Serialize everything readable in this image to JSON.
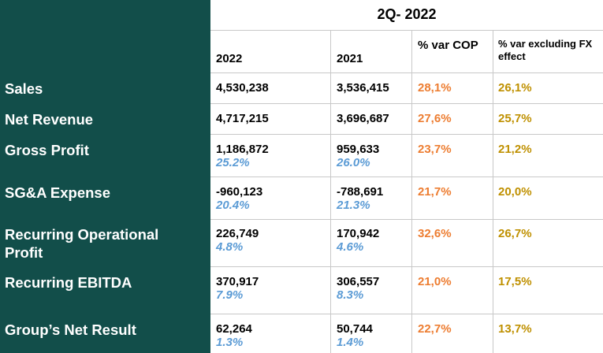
{
  "period_title": "2Q- 2022",
  "headers": {
    "y2022": "2022",
    "y2021": "2021",
    "var_cop": "% var COP",
    "var_fx": "% var excluding FX effect"
  },
  "colors": {
    "sidebar_bg": "#124e4a",
    "margin_pct": "#5b9bd5",
    "var_cop": "#ed7d31",
    "var_fx": "#bf9000"
  },
  "rows": [
    {
      "label": "Sales",
      "v2022": "4,530,238",
      "v2021": "3,536,415",
      "var_cop": "28,1%",
      "var_fx": "26,1%"
    },
    {
      "label": "Net Revenue",
      "v2022": "4,717,215",
      "v2021": "3,696,687",
      "var_cop": "27,6%",
      "var_fx": "25,7%"
    },
    {
      "label": "Gross Profit",
      "v2022": "1,186,872",
      "m2022": "25.2%",
      "v2021": "959,633",
      "m2021": "26.0%",
      "var_cop": "23,7%",
      "var_fx": "21,2%"
    },
    {
      "label": "SG&A Expense",
      "v2022": "-960,123",
      "m2022": "20.4%",
      "v2021": "-788,691",
      "m2021": "21.3%",
      "var_cop": "21,7%",
      "var_fx": "20,0%"
    },
    {
      "label": "Recurring Operational Profit",
      "v2022": "226,749",
      "m2022": "4.8%",
      "v2021": "170,942",
      "m2021": "4.6%",
      "var_cop": "32,6%",
      "var_fx": "26,7%"
    },
    {
      "label": "Recurring EBITDA",
      "v2022": "370,917",
      "m2022": "7.9%",
      "v2021": "306,557",
      "m2021": "8.3%",
      "var_cop": "21,0%",
      "var_fx": "17,5%"
    },
    {
      "label": "Group’s Net Result",
      "v2022": "62,264",
      "m2022": "1.3%",
      "v2021": "50,744",
      "m2021": "1.4%",
      "var_cop": "22,7%",
      "var_fx": "13,7%"
    }
  ]
}
